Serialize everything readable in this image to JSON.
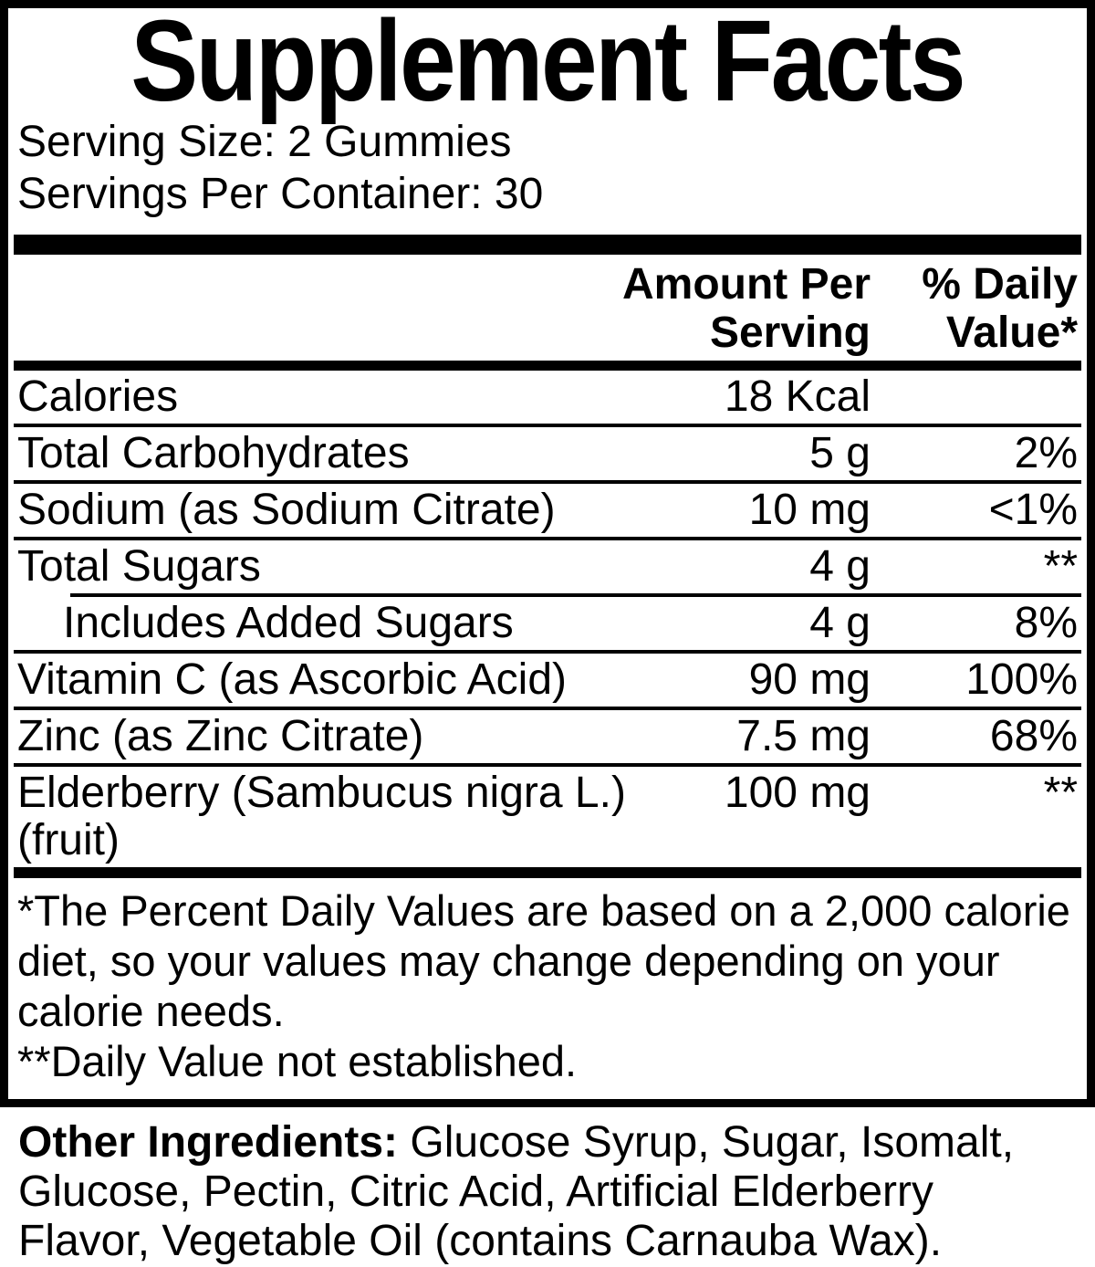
{
  "label": {
    "title": "Supplement Facts",
    "serving_size": "Serving Size: 2 Gummies",
    "servings_per_container": "Servings Per Container: 30",
    "header": {
      "amount": "Amount Per Serving",
      "dv": "% Daily Value*"
    },
    "rows": [
      {
        "name": "Calories",
        "amount": "18 Kcal",
        "dv": "",
        "indent": false
      },
      {
        "name": "Total Carbohydrates",
        "amount": "5 g",
        "dv": "2%",
        "indent": false
      },
      {
        "name": "Sodium (as Sodium Citrate)",
        "amount": "10 mg",
        "dv": "<1%",
        "indent": false
      },
      {
        "name": "Total Sugars",
        "amount": "4 g",
        "dv": "**",
        "indent": false
      },
      {
        "name": "Includes Added Sugars",
        "amount": "4 g",
        "dv": "8%",
        "indent": true
      },
      {
        "name": "Vitamin C (as Ascorbic Acid)",
        "amount": "90 mg",
        "dv": "100%",
        "indent": false
      },
      {
        "name": "Zinc (as Zinc Citrate)",
        "amount": "7.5 mg",
        "dv": "68%",
        "indent": false
      },
      {
        "name": "Elderberry (Sambucus nigra L.) (fruit)",
        "amount": "100 mg",
        "dv": "**",
        "indent": false
      }
    ],
    "footnotes": [
      "*The Percent Daily Values are based on a 2,000 calorie diet, so your values may change depending on your calorie needs.",
      "**Daily Value not established."
    ],
    "other_ingredients_label": "Other Ingredients:",
    "other_ingredients_text": " Glucose Syrup, Sugar, Isomalt, Glucose, Pectin, Citric Acid, Artificial Elderberry Flavor, Vegetable Oil (contains Carnauba Wax)."
  },
  "colors": {
    "text": "#000000",
    "background": "#ffffff"
  }
}
